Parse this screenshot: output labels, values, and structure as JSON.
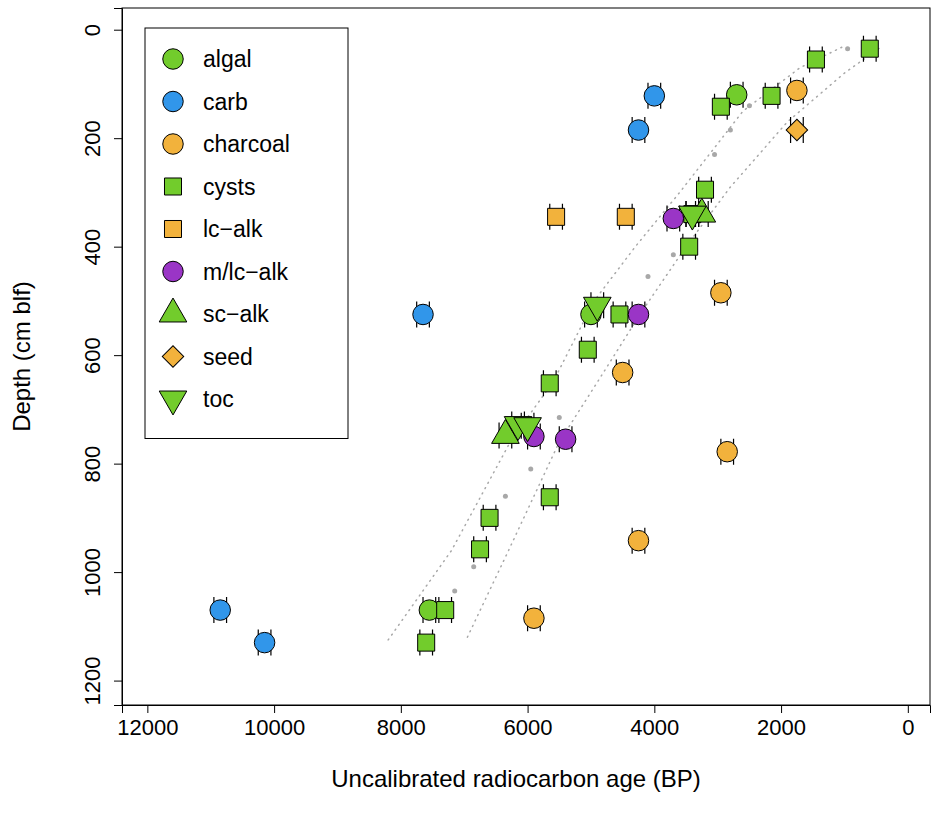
{
  "chart_data": {
    "type": "scatter",
    "xlabel": "Uncalibrated radiocarbon age (BP)",
    "ylabel": "Depth (cm blf)",
    "xlim": [
      12400,
      -350
    ],
    "ylim": [
      1245,
      -40
    ],
    "xticks": [
      12000,
      10000,
      8000,
      6000,
      4000,
      2000,
      0
    ],
    "yticks": [
      0,
      200,
      400,
      600,
      800,
      1000,
      1200
    ],
    "legend": "top-left",
    "grid": false,
    "series": [
      {
        "type": "line",
        "line_style": "dotted",
        "color": "#a8a8a8",
        "x": [
          8200,
          7200,
          6250,
          5600,
          4950,
          4300,
          3600,
          2600,
          1700,
          1000
        ],
        "values": [
          1125,
          960,
          755,
          650,
          500,
          400,
          300,
          150,
          70,
          30
        ]
      },
      {
        "type": "line",
        "line_style": "dotted",
        "color": "#a8a8a8",
        "x": [
          6950,
          6300,
          5500,
          4900,
          4200,
          3500,
          2800,
          1900,
          1000,
          400
        ],
        "values": [
          1120,
          960,
          760,
          650,
          520,
          400,
          290,
          170,
          80,
          30
        ]
      },
      {
        "type": "scatter",
        "marker": "dot",
        "color": "#a8a8a8",
        "x": [
          950,
          2500,
          2800,
          3050,
          3700,
          4100,
          5500,
          5950,
          6350,
          6600,
          6850,
          7150
        ],
        "values": [
          35,
          140,
          185,
          230,
          415,
          455,
          715,
          810,
          860,
          905,
          990,
          1035
        ]
      },
      {
        "name": "algal",
        "marker": "circle",
        "color": "#72cc2c",
        "x": [
          2700,
          5000,
          7550
        ],
        "values": [
          120,
          525,
          1070
        ],
        "x_errors": [
          100,
          100,
          100
        ]
      },
      {
        "name": "carb",
        "marker": "circle",
        "color": "#3196ea",
        "x": [
          4000,
          4250,
          7650,
          10850,
          10150
        ],
        "values": [
          122,
          185,
          525,
          1070,
          1130
        ],
        "x_errors": [
          100,
          100,
          100,
          100,
          100
        ]
      },
      {
        "name": "charcoal",
        "marker": "circle",
        "color": "#f2b23c",
        "x": [
          1750,
          2950,
          4500,
          2850,
          4250,
          5900
        ],
        "values": [
          112,
          485,
          632,
          778,
          942,
          1085
        ],
        "x_errors": [
          100,
          100,
          100,
          100,
          100,
          100
        ]
      },
      {
        "name": "cysts",
        "marker": "square",
        "color": "#72cc2c",
        "x": [
          600,
          1450,
          2150,
          2950,
          3200,
          3400,
          3450,
          4550,
          5050,
          5650,
          5650,
          6600,
          6750,
          7300,
          7600
        ],
        "values": [
          35,
          55,
          122,
          142,
          295,
          340,
          400,
          525,
          590,
          652,
          862,
          900,
          958,
          1070,
          1130
        ],
        "x_errors": [
          100,
          100,
          100,
          100,
          100,
          100,
          100,
          100,
          100,
          100,
          100,
          100,
          100,
          100,
          100
        ]
      },
      {
        "name": "lc−alk",
        "marker": "square",
        "color": "#f2b23c",
        "x": [
          5550,
          4450
        ],
        "values": [
          345,
          345
        ],
        "x_errors": [
          100,
          100
        ]
      },
      {
        "name": "m/lc−alk",
        "marker": "circle",
        "color": "#9a35c6",
        "x": [
          3700,
          4250,
          5900,
          5400
        ],
        "values": [
          348,
          525,
          750,
          755
        ],
        "x_errors": [
          100,
          100,
          100,
          100
        ]
      },
      {
        "name": "sc−alk",
        "marker": "triangle",
        "color": "#72cc2c",
        "x": [
          3250,
          6350
        ],
        "values": [
          340,
          748
        ],
        "x_errors": [
          100,
          100
        ]
      },
      {
        "name": "seed",
        "marker": "diamond",
        "color": "#f2b23c",
        "x": [
          1750
        ],
        "values": [
          185
        ],
        "x_errors": [
          100
        ]
      },
      {
        "name": "toc",
        "marker": "triangle-down",
        "color": "#72cc2c",
        "x": [
          3400,
          4900,
          6150,
          6000
        ],
        "values": [
          340,
          508,
          728,
          730
        ],
        "x_errors": [
          100,
          100,
          100,
          100
        ]
      }
    ]
  }
}
